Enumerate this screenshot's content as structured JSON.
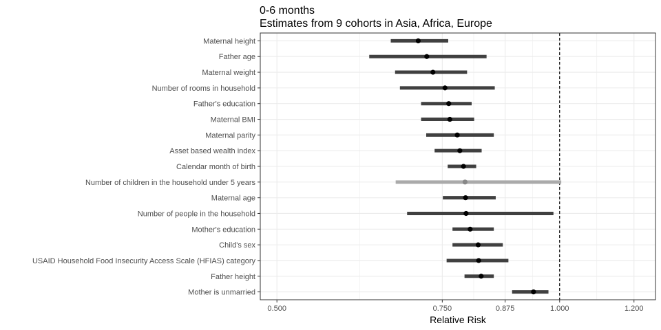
{
  "chart_data": {
    "type": "forest",
    "title": "0-6 months",
    "subtitle": "Estimates from 9 cohorts in Asia, Africa, Europe",
    "xlabel": "Relative Risk",
    "x_scale": "log",
    "xlim": [
      0.48,
      1.265
    ],
    "x_ticks": [
      0.5,
      0.75,
      0.875,
      1.0,
      1.2
    ],
    "x_tick_labels": [
      "0.500",
      "0.750",
      "0.875",
      "1.000",
      "1.200"
    ],
    "reference_line": 1.0,
    "grid": true,
    "colors": {
      "bar": "#404040",
      "point": "#000000",
      "muted_bar": "#aaaaaa",
      "muted_point": "#888888",
      "grid": "#ebebeb",
      "panel_border": "#333333"
    },
    "rows": [
      {
        "label": "Maternal height",
        "estimate": 0.707,
        "lower": 0.661,
        "upper": 0.761,
        "muted": false
      },
      {
        "label": "Father age",
        "estimate": 0.722,
        "lower": 0.627,
        "upper": 0.836,
        "muted": false
      },
      {
        "label": "Maternal weight",
        "estimate": 0.733,
        "lower": 0.668,
        "upper": 0.797,
        "muted": false
      },
      {
        "label": "Number of rooms in household",
        "estimate": 0.755,
        "lower": 0.676,
        "upper": 0.853,
        "muted": false
      },
      {
        "label": "Father's education",
        "estimate": 0.762,
        "lower": 0.712,
        "upper": 0.806,
        "muted": false
      },
      {
        "label": "Maternal BMI",
        "estimate": 0.764,
        "lower": 0.712,
        "upper": 0.811,
        "muted": false
      },
      {
        "label": "Maternal parity",
        "estimate": 0.778,
        "lower": 0.721,
        "upper": 0.851,
        "muted": false
      },
      {
        "label": "Asset based wealth index",
        "estimate": 0.783,
        "lower": 0.736,
        "upper": 0.826,
        "muted": false
      },
      {
        "label": "Calendar month of birth",
        "estimate": 0.79,
        "lower": 0.76,
        "upper": 0.815,
        "muted": false
      },
      {
        "label": "Number of children in the household under 5 years",
        "estimate": 0.793,
        "lower": 0.669,
        "upper": 1.004,
        "muted": true
      },
      {
        "label": "Maternal age",
        "estimate": 0.794,
        "lower": 0.751,
        "upper": 0.855,
        "muted": false
      },
      {
        "label": "Number of people in the household",
        "estimate": 0.795,
        "lower": 0.688,
        "upper": 0.985,
        "muted": false
      },
      {
        "label": "Mother's education",
        "estimate": 0.803,
        "lower": 0.769,
        "upper": 0.851,
        "muted": false
      },
      {
        "label": "Child's sex",
        "estimate": 0.819,
        "lower": 0.769,
        "upper": 0.87,
        "muted": false
      },
      {
        "label": "USAID Household Food Insecurity Access Scale (HFIAS) category",
        "estimate": 0.82,
        "lower": 0.758,
        "upper": 0.882,
        "muted": false
      },
      {
        "label": "Father height",
        "estimate": 0.825,
        "lower": 0.792,
        "upper": 0.851,
        "muted": false
      },
      {
        "label": "Mother is unmarried",
        "estimate": 0.938,
        "lower": 0.89,
        "upper": 0.973,
        "muted": false
      }
    ]
  }
}
